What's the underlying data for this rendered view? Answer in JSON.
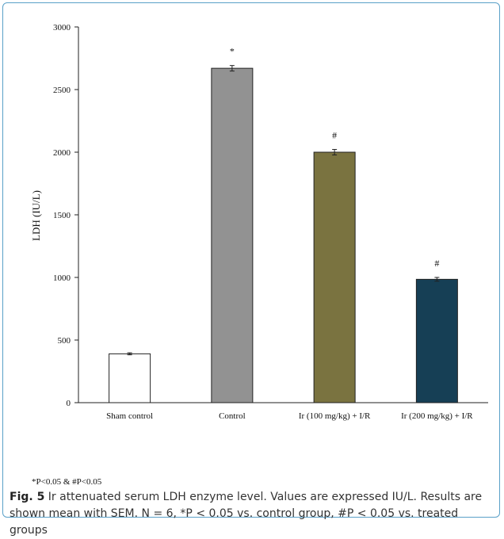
{
  "chart_data": {
    "type": "bar",
    "title": "",
    "xlabel": "",
    "ylabel": "LDH (IU/L)",
    "ylim": [
      0,
      3000
    ],
    "yticks": [
      "0",
      "500",
      "1000",
      "1500",
      "2000",
      "2500",
      "3000"
    ],
    "categories": [
      "Sham control",
      "Control",
      "Ir (100 mg/kg) + I/R",
      "Ir (200 mg/kg) + I/R"
    ],
    "values": [
      390,
      2670,
      2000,
      985
    ],
    "errors": [
      8,
      22,
      22,
      15
    ],
    "markers": [
      "",
      "*",
      "#",
      "#"
    ],
    "colors": [
      "#ffffff",
      "#929292",
      "#7a7340",
      "#163f55"
    ],
    "grid": false,
    "legend": "none"
  },
  "footnote": "*P<0.05 & #P<0.05",
  "caption": {
    "label": "Fig. 5",
    "text": "Ir attenuated serum LDH enzyme level. Values are expressed IU/L. Results are shown mean with SEM. N = 6, *P < 0.05 vs. control group, #P < 0.05 vs. treated groups"
  },
  "colors": {
    "border": "#5aa0c8",
    "caption_bg": "#ffffff"
  }
}
